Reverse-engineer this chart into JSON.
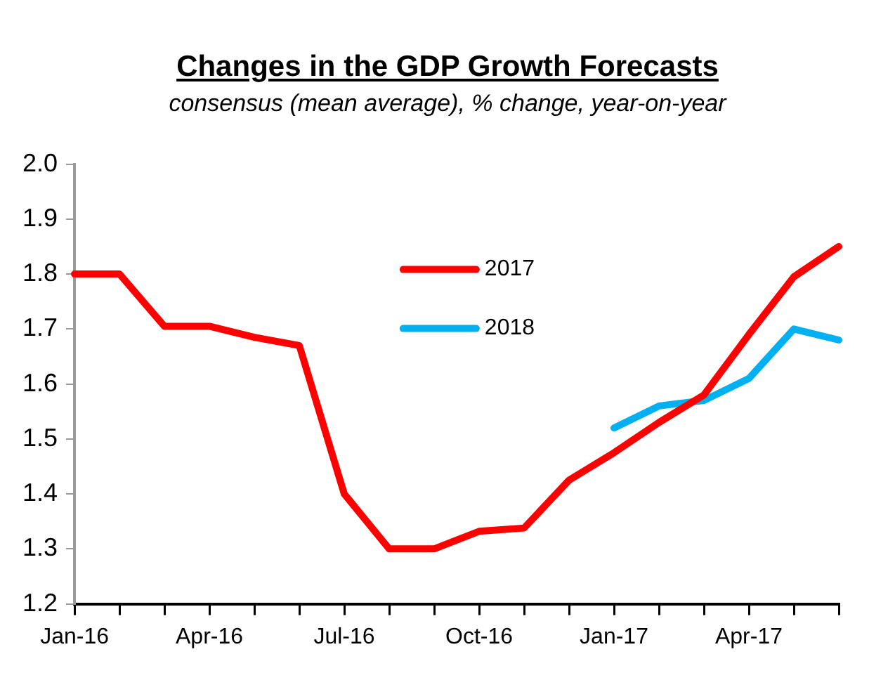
{
  "chart_data": {
    "type": "line",
    "title": "Changes in the GDP Growth Forecasts",
    "subtitle": "consensus (mean average), % change, year-on-year",
    "categories": [
      "Jan-16",
      null,
      null,
      "Apr-16",
      null,
      null,
      "Jul-16",
      null,
      null,
      "Oct-16",
      null,
      null,
      "Jan-17",
      null,
      null,
      "Apr-17",
      null,
      null
    ],
    "series": [
      {
        "name": "2017",
        "color": "#ff0000",
        "values": [
          1.8,
          1.8,
          1.705,
          1.705,
          1.685,
          1.67,
          1.4,
          1.3,
          1.3,
          1.332,
          1.338,
          1.425,
          1.475,
          1.53,
          1.58,
          1.69,
          1.795,
          1.85
        ]
      },
      {
        "name": "2018",
        "color": "#00b0f0",
        "values": [
          null,
          null,
          null,
          null,
          null,
          null,
          null,
          null,
          null,
          null,
          null,
          null,
          1.52,
          1.56,
          1.57,
          1.61,
          1.7,
          1.68
        ]
      }
    ],
    "ylim": [
      1.2,
      2.0
    ],
    "yticks": [
      1.2,
      1.3,
      1.4,
      1.5,
      1.6,
      1.7,
      1.8,
      1.9,
      {
        "value": 2,
        "label": "2.0"
      }
    ],
    "grid": false,
    "legend": "top",
    "marker": "none",
    "line_style": "solid"
  }
}
